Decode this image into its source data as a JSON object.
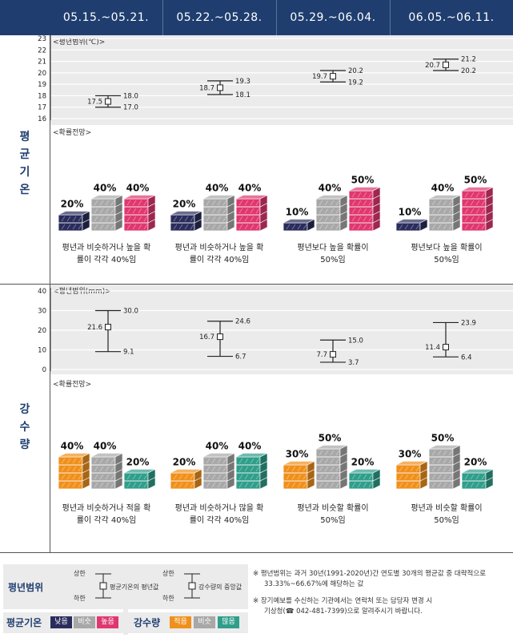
{
  "header": {
    "periods": [
      "05.15.~05.21.",
      "05.22.~05.28.",
      "05.29.~06.04.",
      "06.05.~06.11."
    ]
  },
  "temperature": {
    "section_label": [
      "평",
      "균",
      "기",
      "온"
    ],
    "range_tag": "<평년범위(℃)>",
    "prob_tag": "<확률전망>",
    "chart_data": {
      "type": "range",
      "title": "평년범위(℃)",
      "categories": [
        "05.15.~05.21.",
        "05.22.~05.28.",
        "05.29.~06.04.",
        "06.05.~06.11."
      ],
      "ylim": [
        16,
        23
      ],
      "yticks": [
        16,
        17,
        18,
        19,
        20,
        21,
        22,
        23
      ],
      "ranges": [
        {
          "mid": 17.5,
          "high": 18.0,
          "low": 17.0
        },
        {
          "mid": 18.7,
          "high": 19.3,
          "low": 18.1
        },
        {
          "mid": 19.7,
          "high": 20.2,
          "low": 19.2
        },
        {
          "mid": 20.7,
          "high": 21.2,
          "low": 20.2
        }
      ]
    },
    "prob_chart_data": {
      "type": "bar",
      "series": [
        "낮음",
        "비슷",
        "높음"
      ],
      "values": [
        [
          20,
          40,
          40
        ],
        [
          20,
          40,
          40
        ],
        [
          10,
          40,
          50
        ],
        [
          10,
          40,
          50
        ]
      ]
    },
    "descriptions": [
      [
        "평년과 비슷하거나 높을 확",
        "률이 각각 40%임"
      ],
      [
        "평년과 비슷하거나 높을 확",
        "률이 각각 40%임"
      ],
      [
        "평년보다 높을 확률이",
        "50%임"
      ],
      [
        "평년보다 높을 확률이",
        "50%임"
      ]
    ]
  },
  "precipitation": {
    "section_label": [
      "강",
      "수",
      "량"
    ],
    "range_tag": "<평년범위(mm)>",
    "prob_tag": "<확률전망>",
    "chart_data": {
      "type": "range",
      "title": "평년범위(mm)",
      "categories": [
        "05.15.~05.21.",
        "05.22.~05.28.",
        "05.29.~06.04.",
        "06.05.~06.11."
      ],
      "ylim": [
        0,
        40
      ],
      "yticks": [
        0,
        10,
        20,
        30,
        40
      ],
      "ranges": [
        {
          "mid": 21.6,
          "high": 30.0,
          "low": 9.1
        },
        {
          "mid": 16.7,
          "high": 24.6,
          "low": 6.7
        },
        {
          "mid": 7.7,
          "high": 15.0,
          "low": 3.7
        },
        {
          "mid": 11.4,
          "high": 23.9,
          "low": 6.4
        }
      ]
    },
    "prob_chart_data": {
      "type": "bar",
      "series": [
        "적음",
        "비슷",
        "많음"
      ],
      "values": [
        [
          40,
          40,
          20
        ],
        [
          20,
          40,
          40
        ],
        [
          30,
          50,
          20
        ],
        [
          30,
          50,
          20
        ]
      ]
    },
    "descriptions": [
      [
        "평년과 비슷하거나 적을 확",
        "률이 각각 40%임"
      ],
      [
        "평년과 비슷하거나 많을 확",
        "률이 각각 40%임"
      ],
      [
        "평년과 비슷할 확률이",
        "50%임"
      ],
      [
        "평년과 비슷할 확률이",
        "50%임"
      ]
    ]
  },
  "legend": {
    "range_title": "평년범위",
    "upper": "상한",
    "lower": "하한",
    "temp_mid": "평균기온의 평년값",
    "precip_mid": "강수량의 중앙값",
    "temp_title": "평균기온",
    "temp_chips": [
      "낮음",
      "비슷",
      "높음"
    ],
    "precip_title": "강수량",
    "precip_chips": [
      "적음",
      "비슷",
      "많음"
    ]
  },
  "notes": {
    "n1_line1": "※  평년범위는 과거 30년(1991-2020년)간 연도별 30개의 평균값 중 대략적으로",
    "n1_line2": "33.33%~66.67%에 해당하는 값",
    "n2_line1": "※  장기예보를 수신하는 기관에서는 연락처 또는 담당자 변경 시",
    "n2_line2": "기상청(☎ 042-481-7399)으로 알려주시기 바랍니다."
  },
  "colors": {
    "navy": "#1f3e6f",
    "low_temp": "#2a2d5c",
    "similar": "#a8a8a8",
    "high_temp": "#e0376f",
    "low_precip": "#f0901c",
    "high_precip": "#2f9e8a"
  }
}
